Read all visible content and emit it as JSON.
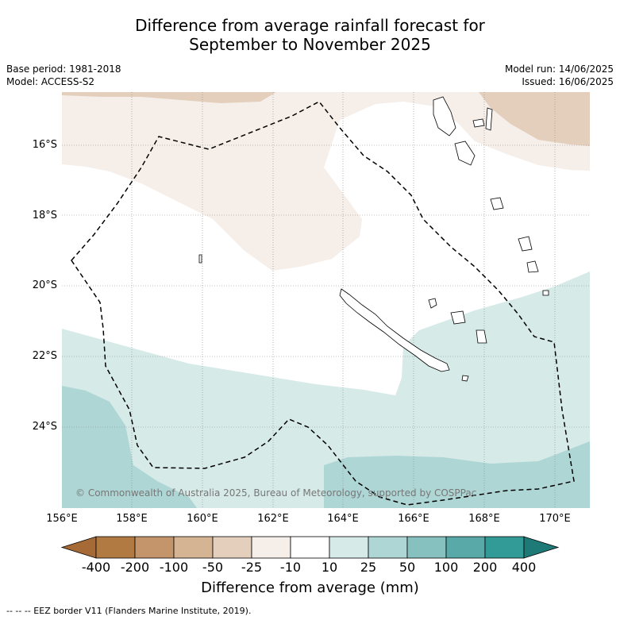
{
  "title": {
    "line1": "Difference from average rainfall forecast for",
    "line2": "September to November 2025"
  },
  "meta": {
    "base_period": "Base period: 1981-2018",
    "model": "Model: ACCESS-S2",
    "model_run": "Model run: 14/06/2025",
    "issued": "Issued: 16/06/2025"
  },
  "axes": {
    "lat_labels": [
      "16°S",
      "18°S",
      "20°S",
      "22°S",
      "24°S"
    ],
    "lon_labels": [
      "156°E",
      "158°E",
      "160°E",
      "162°E",
      "164°E",
      "166°E",
      "168°E",
      "170°E"
    ]
  },
  "credit": "© Commonwealth of Australia 2025, Bureau of Meteorology, supported by COSPPac",
  "colorbar": {
    "title": "Difference from average (mm)",
    "ticks": [
      "-400",
      "-200",
      "-100",
      "-50",
      "-25",
      "-10",
      "10",
      "25",
      "50",
      "100",
      "200",
      "400"
    ],
    "colors": [
      "#a56a36",
      "#b17a43",
      "#c4956a",
      "#d5b494",
      "#e4cfbd",
      "#f5eee9",
      "#ffffff",
      "#d6eae8",
      "#aed6d5",
      "#86c0bf",
      "#58a9a8",
      "#339b97",
      "#1e7a76"
    ]
  },
  "footnote": "--  --  -- EEZ border V11 (Flanders Marine Institute, 2019)."
}
